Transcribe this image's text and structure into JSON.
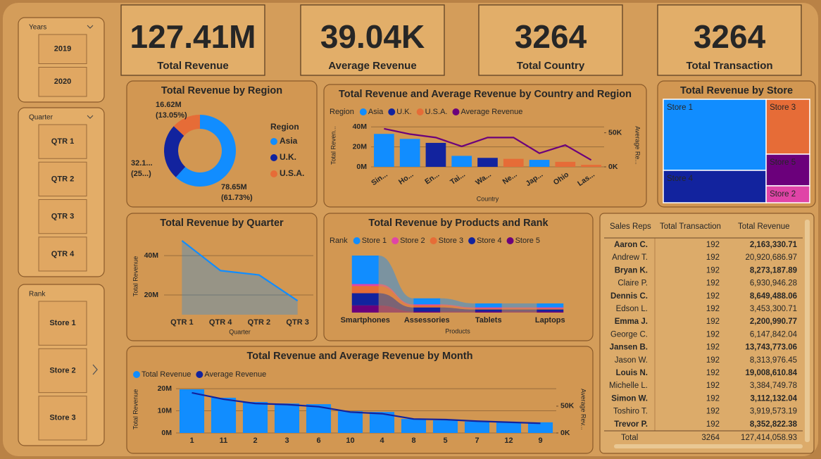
{
  "slicers": [
    {
      "title": "Years",
      "items": [
        "2019",
        "2020"
      ]
    },
    {
      "title": "Quarter",
      "items": [
        "QTR 1",
        "QTR 2",
        "QTR 3",
        "QTR 4"
      ]
    },
    {
      "title": "Rank",
      "items": [
        "Store 1",
        "Store 2",
        "Store 3"
      ]
    }
  ],
  "cards": [
    {
      "value": "127.41M",
      "label": "Total Revenue"
    },
    {
      "value": "39.04K",
      "label": "Average Revenue"
    },
    {
      "value": "3264",
      "label": "Total Country"
    },
    {
      "value": "3264",
      "label": "Total Transaction"
    }
  ],
  "chart_data": [
    {
      "type": "donut",
      "title": "Total Revenue by Region",
      "legend_title": "Region",
      "categories": [
        "Asia",
        "U.K.",
        "U.S.A."
      ],
      "values": [
        78.65,
        32.14,
        16.62
      ],
      "value_labels": [
        [
          "78.65M",
          "(61.73%)"
        ],
        [
          "32.1...",
          "(25...)"
        ],
        [
          "16.62M",
          "(13.05%)"
        ]
      ],
      "colors": [
        "#118dff",
        "#12239e",
        "#e66c37"
      ]
    },
    {
      "type": "combo",
      "title": "Total Revenue and Average Revenue by Country and Region",
      "legend_title": "Region",
      "categories": [
        "Sin...",
        "Ho...",
        "En...",
        "Tai...",
        "Wa...",
        "Ne...",
        "Jap...",
        "Ohio",
        "Las..."
      ],
      "x_label": "Country",
      "y_label": "Total Reven...",
      "y2_label": "Average Re...",
      "series": [
        {
          "name": "Asia",
          "color": "#118dff",
          "values": [
            33000000,
            28000000,
            null,
            11000000,
            null,
            null,
            7000000,
            null,
            null
          ]
        },
        {
          "name": "U.K.",
          "color": "#12239e",
          "values": [
            null,
            null,
            24000000,
            null,
            9000000,
            null,
            null,
            null,
            null
          ]
        },
        {
          "name": "U.S.A.",
          "color": "#e66c37",
          "values": [
            null,
            null,
            null,
            null,
            null,
            8000000,
            null,
            5000000,
            2000000
          ]
        },
        {
          "name": "Average Revenue",
          "color": "#6b007b",
          "axis": "y2",
          "values": [
            56000,
            48000,
            43000,
            30000,
            43000,
            43000,
            20000,
            32000,
            10000
          ]
        }
      ],
      "ylim": [
        0,
        43000000
      ],
      "yticks": [
        {
          "value": 0,
          "label": "0M"
        },
        {
          "value": 20000000,
          "label": "20M"
        },
        {
          "value": 40000000,
          "label": "40M"
        }
      ],
      "y2lim": [
        0,
        63000
      ],
      "y2ticks": [
        {
          "value": 0,
          "label": "0K"
        },
        {
          "value": 50000,
          "label": "50K"
        }
      ],
      "grid": true
    },
    {
      "type": "area",
      "title": "Total Revenue by Quarter",
      "categories": [
        "QTR 1",
        "QTR 4",
        "QTR 2",
        "QTR 3"
      ],
      "values": [
        47600000,
        32400000,
        30200000,
        17100000
      ],
      "x_label": "Quarter",
      "y_label": "Total Revenue",
      "color": "#118dff",
      "ylim": [
        10000000,
        49000000
      ],
      "yticks": [
        {
          "value": 20000000,
          "label": "20M"
        },
        {
          "value": 40000000,
          "label": "40M"
        }
      ],
      "grid": true
    },
    {
      "type": "ribbon",
      "title": "Total Revenue by Products and Rank",
      "legend_title": "Rank",
      "categories": [
        "Smartphones",
        "Assessories",
        "Tablets",
        "Laptops"
      ],
      "x_label": "Products",
      "series": [
        {
          "name": "Store 1",
          "color": "#118dff",
          "values": [
            28,
            6,
            4,
            4
          ]
        },
        {
          "name": "Store 2",
          "color": "#e044a7",
          "values": [
            2,
            1,
            1,
            1
          ]
        },
        {
          "name": "Store 3",
          "color": "#e66c37",
          "values": [
            7,
            2,
            1,
            1
          ]
        },
        {
          "name": "Store 4",
          "color": "#12239e",
          "values": [
            12,
            4,
            2,
            2
          ]
        },
        {
          "name": "Store 5",
          "color": "#6b007b",
          "values": [
            7,
            1,
            1,
            1
          ]
        }
      ]
    },
    {
      "type": "combo",
      "title": "Total Revenue and Average Revenue by Month",
      "categories": [
        "1",
        "11",
        "2",
        "3",
        "6",
        "10",
        "4",
        "8",
        "5",
        "7",
        "12",
        "9"
      ],
      "y_label": "Total Revenue",
      "y2_label": "Average Rev...",
      "series": [
        {
          "name": "Total Revenue",
          "color": "#118dff",
          "values": [
            19700000,
            15900000,
            14000000,
            13300000,
            13000000,
            9800000,
            9500000,
            6300000,
            5700000,
            5100000,
            4800000,
            4800000
          ]
        },
        {
          "name": "Average Revenue",
          "color": "#12239e",
          "axis": "y2",
          "values": [
            75000,
            63000,
            55000,
            53000,
            49000,
            39000,
            36000,
            26000,
            25000,
            22000,
            20000,
            18000
          ]
        }
      ],
      "ylim": [
        0,
        21300000
      ],
      "yticks": [
        {
          "value": 0,
          "label": "0M"
        },
        {
          "value": 10000000,
          "label": "10M"
        },
        {
          "value": 20000000,
          "label": "20M"
        }
      ],
      "y2lim": [
        0,
        88000
      ],
      "y2ticks": [
        {
          "value": 0,
          "label": "0K"
        },
        {
          "value": 50000,
          "label": "50K"
        }
      ],
      "grid": true
    },
    {
      "type": "treemap",
      "title": "Total Revenue by Store",
      "categories": [
        "Store 1",
        "Store 4",
        "Store 3",
        "Store 5",
        "Store 2"
      ],
      "values": [
        61.4,
        28.0,
        20.1,
        11.6,
        6.2
      ],
      "colors": [
        "#118dff",
        "#12239e",
        "#e66c37",
        "#6b007b",
        "#e044a7"
      ]
    }
  ],
  "table": {
    "columns": [
      "Sales Reps",
      "Total Transaction",
      "Total Revenue"
    ],
    "rows": [
      [
        "Aaron C.",
        "192",
        "2,163,330.71"
      ],
      [
        "Andrew T.",
        "192",
        "20,920,686.97"
      ],
      [
        "Bryan K.",
        "192",
        "8,273,187.89"
      ],
      [
        "Claire P.",
        "192",
        "6,930,946.28"
      ],
      [
        "Dennis C.",
        "192",
        "8,649,488.06"
      ],
      [
        "Edson L.",
        "192",
        "3,453,300.71"
      ],
      [
        "Emma J.",
        "192",
        "2,200,990.77"
      ],
      [
        "George C.",
        "192",
        "6,147,842.04"
      ],
      [
        "Jansen B.",
        "192",
        "13,743,773.06"
      ],
      [
        "Jason W.",
        "192",
        "8,313,976.45"
      ],
      [
        "Louis N.",
        "192",
        "19,008,610.84"
      ],
      [
        "Michelle L.",
        "192",
        "3,384,749.78"
      ],
      [
        "Simon W.",
        "192",
        "3,112,132.04"
      ],
      [
        "Toshiro T.",
        "192",
        "3,919,573.19"
      ],
      [
        "Trevor P.",
        "192",
        "8,352,822.38"
      ]
    ],
    "total": [
      "Total",
      "3264",
      "127,414,058.93"
    ]
  }
}
